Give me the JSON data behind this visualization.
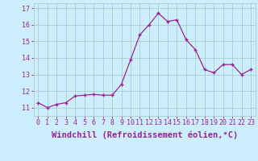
{
  "x": [
    0,
    1,
    2,
    3,
    4,
    5,
    6,
    7,
    8,
    9,
    10,
    11,
    12,
    13,
    14,
    15,
    16,
    17,
    18,
    19,
    20,
    21,
    22,
    23
  ],
  "y": [
    11.3,
    11.0,
    11.2,
    11.3,
    11.7,
    11.75,
    11.8,
    11.75,
    11.75,
    12.4,
    13.9,
    15.4,
    16.0,
    16.7,
    16.2,
    16.3,
    15.1,
    14.5,
    13.3,
    13.1,
    13.6,
    13.6,
    13.0,
    13.3
  ],
  "line_color": "#992299",
  "marker": "+",
  "marker_size": 3,
  "marker_linewidth": 1.0,
  "line_width": 0.9,
  "background_color": "#cceeff",
  "grid_color": "#aacccc",
  "xlabel": "Windchill (Refroidissement éolien,°C)",
  "ylim": [
    10.5,
    17.3
  ],
  "xlim": [
    -0.5,
    23.5
  ],
  "xticks": [
    0,
    1,
    2,
    3,
    4,
    5,
    6,
    7,
    8,
    9,
    10,
    11,
    12,
    13,
    14,
    15,
    16,
    17,
    18,
    19,
    20,
    21,
    22,
    23
  ],
  "yticks": [
    11,
    12,
    13,
    14,
    15,
    16,
    17
  ],
  "tick_fontsize": 6.0,
  "xlabel_fontsize": 7.5
}
